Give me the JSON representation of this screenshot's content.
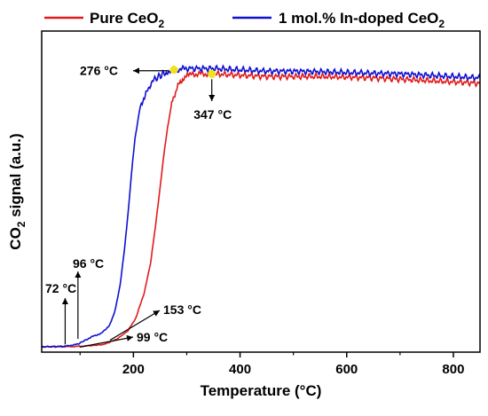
{
  "chart_data": {
    "type": "line",
    "xlabel": "Temperature (°C)",
    "ylabel_main": "CO",
    "ylabel_sub": "2",
    "ylabel_rest": " signal (a.u.)",
    "xlim": [
      28,
      850
    ],
    "ylim": [
      0,
      1.2
    ],
    "xticks": [
      200,
      400,
      600,
      800
    ],
    "x_minor_ticks": [
      100,
      300,
      500,
      700
    ],
    "yticks_shown": false,
    "grid": false,
    "legend_position": "top-center",
    "series": [
      {
        "name_main": "Pure CeO",
        "name_sub": "2",
        "color": "#e11b1b",
        "points": [
          [
            28,
            0.02
          ],
          [
            60,
            0.02
          ],
          [
            90,
            0.021
          ],
          [
            99,
            0.022
          ],
          [
            120,
            0.024
          ],
          [
            140,
            0.028
          ],
          [
            153,
            0.035
          ],
          [
            170,
            0.05
          ],
          [
            190,
            0.08
          ],
          [
            205,
            0.13
          ],
          [
            220,
            0.22
          ],
          [
            232,
            0.33
          ],
          [
            240,
            0.45
          ],
          [
            248,
            0.58
          ],
          [
            256,
            0.72
          ],
          [
            264,
            0.84
          ],
          [
            272,
            0.93
          ],
          [
            282,
            0.99
          ],
          [
            292,
            1.02
          ],
          [
            305,
            1.035
          ],
          [
            320,
            1.04
          ],
          [
            347,
            1.04
          ],
          [
            400,
            1.035
          ],
          [
            450,
            1.03
          ],
          [
            500,
            1.03
          ],
          [
            550,
            1.03
          ],
          [
            600,
            1.028
          ],
          [
            650,
            1.025
          ],
          [
            700,
            1.02
          ],
          [
            750,
            1.015
          ],
          [
            800,
            1.01
          ],
          [
            850,
            1.005
          ]
        ]
      },
      {
        "name_main": "1 mol.% In-doped CeO",
        "name_sub": "2",
        "color": "#1010d0",
        "points": [
          [
            28,
            0.02
          ],
          [
            72,
            0.022
          ],
          [
            96,
            0.03
          ],
          [
            110,
            0.045
          ],
          [
            125,
            0.06
          ],
          [
            140,
            0.07
          ],
          [
            155,
            0.1
          ],
          [
            165,
            0.15
          ],
          [
            175,
            0.25
          ],
          [
            183,
            0.38
          ],
          [
            190,
            0.52
          ],
          [
            196,
            0.66
          ],
          [
            203,
            0.8
          ],
          [
            212,
            0.91
          ],
          [
            225,
            0.98
          ],
          [
            240,
            1.02
          ],
          [
            260,
            1.045
          ],
          [
            276,
            1.055
          ],
          [
            300,
            1.06
          ],
          [
            350,
            1.06
          ],
          [
            400,
            1.055
          ],
          [
            450,
            1.05
          ],
          [
            500,
            1.05
          ],
          [
            550,
            1.048
          ],
          [
            600,
            1.045
          ],
          [
            650,
            1.042
          ],
          [
            700,
            1.04
          ],
          [
            750,
            1.035
          ],
          [
            800,
            1.03
          ],
          [
            850,
            1.025
          ]
        ]
      }
    ],
    "annotations": [
      {
        "label": "276 °C",
        "x": 276,
        "y": 1.055,
        "marker": true,
        "arrow": "left"
      },
      {
        "label": "347 °C",
        "x": 347,
        "y": 1.04,
        "marker": true,
        "arrow": "down"
      },
      {
        "label": "72 °C",
        "x": 72,
        "y": 0.022,
        "marker": false,
        "arrow": "up"
      },
      {
        "label": "96 °C",
        "x": 96,
        "y": 0.03,
        "marker": false,
        "arrow": "up"
      },
      {
        "label": "153 °C",
        "x": 153,
        "y": 0.035,
        "marker": false,
        "arrow": "right"
      },
      {
        "label": "99 °C",
        "x": 99,
        "y": 0.022,
        "marker": false,
        "arrow": "right"
      }
    ],
    "marker_color": "#f2e21a"
  }
}
